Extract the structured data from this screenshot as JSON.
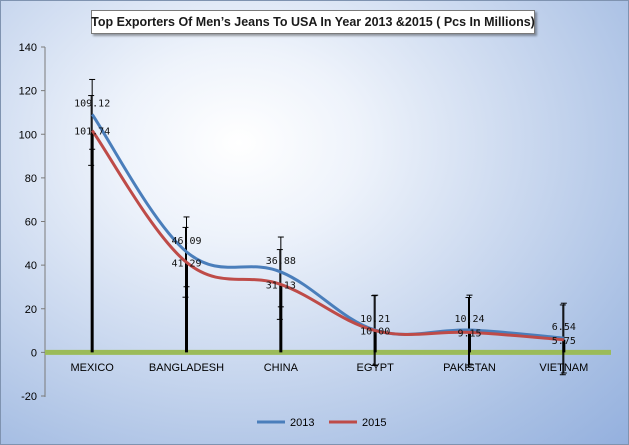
{
  "chart_data": {
    "type": "line",
    "title": "Top Exporters Of Men’s Jeans To USA In Year 2013 &2015 ( Pcs In Millions)",
    "categories": [
      "MEXICO",
      "BANGLADESH",
      "CHINA",
      "EGYPT",
      "PAKISTAN",
      "VIETNAM"
    ],
    "series": [
      {
        "name": "2013",
        "color": "#4a7ebb",
        "values": [
          109.12,
          46.09,
          36.88,
          10.21,
          10.24,
          6.54
        ],
        "labels": [
          "109.12",
          "46.09",
          "36.88",
          "10.21",
          "10.24",
          "6.54"
        ]
      },
      {
        "name": "2015",
        "color": "#be4b48",
        "values": [
          101.74,
          41.29,
          31.13,
          10.0,
          9.15,
          5.75
        ],
        "labels": [
          "101.74",
          "41.29",
          "31.13",
          "10.00",
          "9.15",
          "5.75"
        ]
      }
    ],
    "error_bar_amount": 16,
    "ylim": [
      -20,
      140
    ],
    "yticks": [
      "140",
      "120",
      "100",
      "80",
      "60",
      "40",
      "20",
      "0",
      "-20"
    ],
    "zero_line_color": "#9bbb59",
    "smooth": true,
    "grid": false,
    "legend_position": "bottom"
  }
}
